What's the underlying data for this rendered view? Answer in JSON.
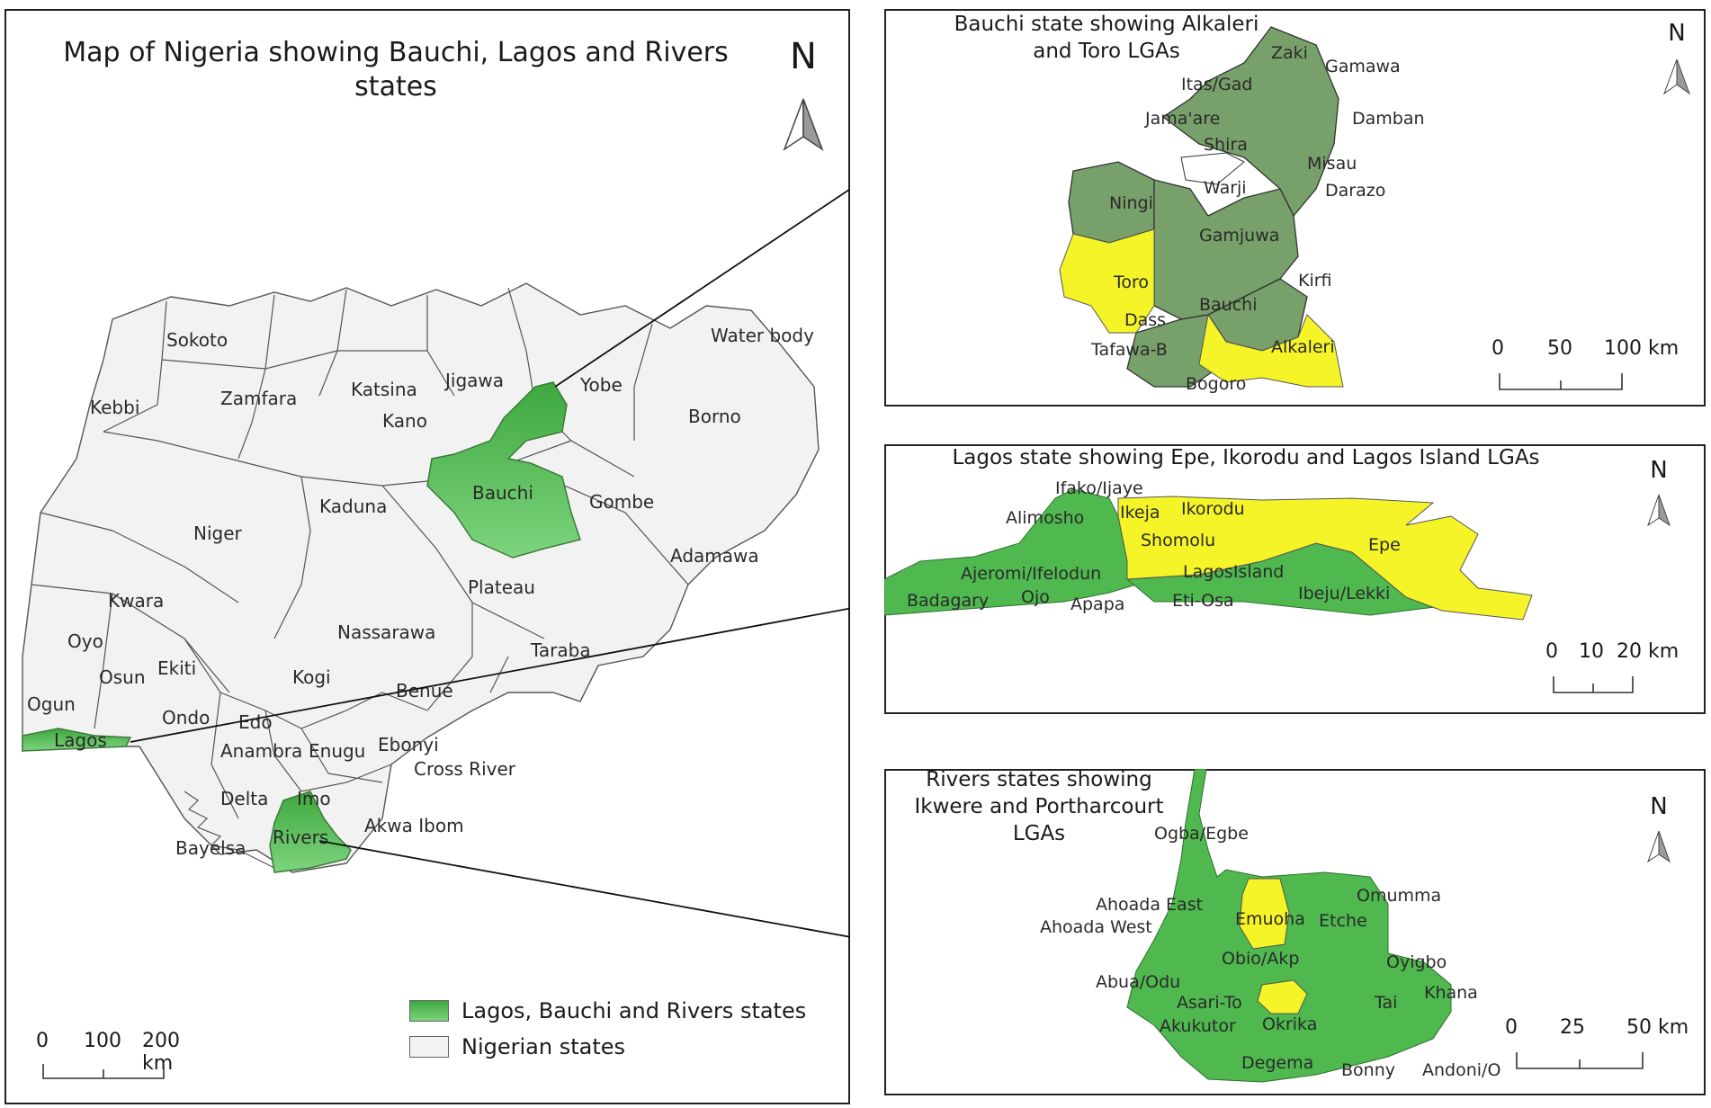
{
  "main_map": {
    "title_line1": "Map of Nigeria showing Bauchi, Lagos and Rivers",
    "title_line2": "states",
    "north": "N",
    "scale": [
      "0",
      "100",
      "200 km"
    ],
    "legend": [
      {
        "label": "Lagos, Bauchi and Rivers states",
        "color": "#4cb84c"
      },
      {
        "label": "Nigerian states",
        "color": "#f2f2f2"
      }
    ],
    "state_labels": [
      "Sokoto",
      "Zamfara",
      "Katsina",
      "Jigawa",
      "Yobe",
      "Borno",
      "Kebbi",
      "Kano",
      "Bauchi",
      "Gombe",
      "Kaduna",
      "Niger",
      "Adamawa",
      "Plateau",
      "Kwara",
      "Nassarawa",
      "Oyo",
      "Taraba",
      "Osun",
      "Ekiti",
      "Kogi",
      "Ogun",
      "Benue",
      "Ondo",
      "Edo",
      "Lagos",
      "Anambra",
      "Enugu",
      "Ebonyi",
      "Cross River",
      "Delta",
      "Imo",
      "Akwa Ibom",
      "Bayelsa",
      "Rivers",
      "Water body"
    ]
  },
  "bauchi_inset": {
    "title_line1": "Bauchi state showing Alkaleri",
    "title_line2": "and Toro LGAs",
    "north": "N",
    "scale": [
      "0",
      "50",
      "100 km"
    ],
    "lga_labels": [
      "Zaki",
      "Gamawa",
      "Itas/Gad",
      "Jama'are",
      "Damban",
      "Shira",
      "Misau",
      "Ningi",
      "Warji",
      "Darazo",
      "Gamjuwa",
      "Toro",
      "Kirfi",
      "Bauchi",
      "Dass",
      "Tafawa-B",
      "Alkaleri",
      "Bogoro"
    ]
  },
  "lagos_inset": {
    "title": "Lagos state showing Epe, Ikorodu and Lagos Island LGAs",
    "north": "N",
    "scale": [
      "0",
      "10",
      "20 km"
    ],
    "lga_labels": [
      "Ifako/Ijaye",
      "Ikorodu",
      "Alimosho",
      "Ikeja",
      "Shomolu",
      "Epe",
      "Ajeromi/Ifelodun",
      "LagosIsland",
      "Badagary",
      "Ojo",
      "Apapa",
      "Eti-Osa",
      "Ibeju/Lekki"
    ]
  },
  "rivers_inset": {
    "title_line1": "Rivers states showing",
    "title_line2": "Ikwere and Portharcourt",
    "title_line3": "LGAs",
    "north": "N",
    "scale": [
      "0",
      "25",
      "50 km"
    ],
    "lga_labels": [
      "Ogba/Egbe",
      "Ahoada East",
      "Omumma",
      "Ahoada West",
      "Emuoha",
      "Etche",
      "Obio/Akp",
      "Oyigbo",
      "Abua/Odu",
      "Khana",
      "Asari-To",
      "Tai",
      "Akukutor",
      "Okrika",
      "Degema",
      "Bonny",
      "Andoni/O"
    ]
  },
  "colors": {
    "highlight_green": "#4cb84c",
    "bauchi_green": "#78a06a",
    "yellow": "#f4f428",
    "state_fill": "#f2f2f2"
  }
}
